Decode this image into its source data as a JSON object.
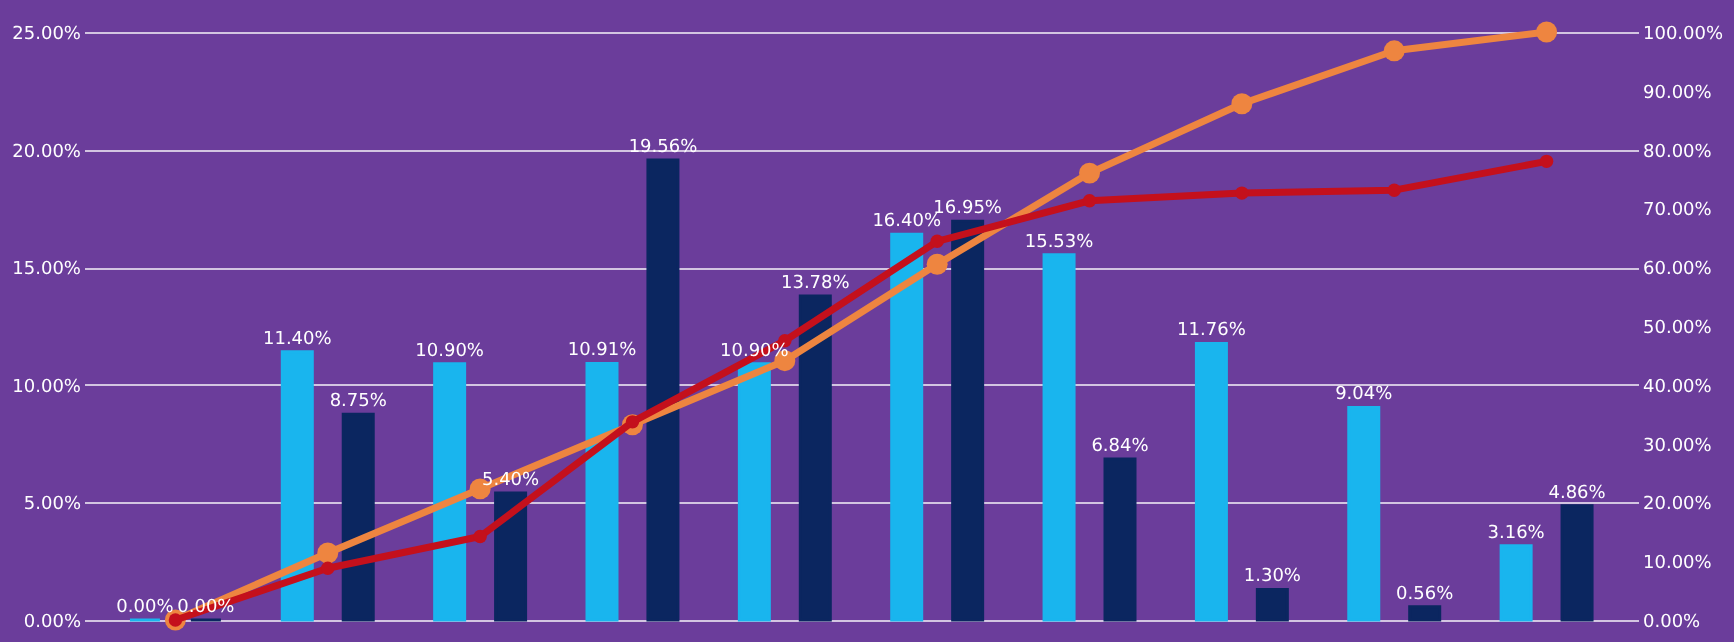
{
  "chart_data": {
    "type": "bar",
    "categories": [
      null,
      null,
      null,
      null,
      null,
      null,
      null,
      null,
      null,
      null
    ],
    "series": [
      {
        "color": "#19b5ee",
        "values": [
          0,
          11.4,
          10.9,
          10.91,
          10.9,
          16.4,
          15.53,
          11.76,
          9.04,
          3.16
        ],
        "value_labels": [
          "0.00%",
          "11.40%",
          "10.90%",
          "10.91%",
          "10.90%",
          "16.40%",
          "15.53%",
          "11.76%",
          "9.04%",
          "3.16%"
        ]
      },
      {
        "color": "#0b2660",
        "values": [
          0,
          8.75,
          5.4,
          19.56,
          13.78,
          16.95,
          6.84,
          1.3,
          0.56,
          4.86
        ],
        "value_labels": [
          "0.00%",
          "8.75%",
          "5.40%",
          "19.56%",
          "13.78%",
          "16.95%",
          "6.84%",
          "1.30%",
          "0.56%",
          "4.86%"
        ]
      },
      {
        "type": "line",
        "axis": "y2",
        "color": "#ee8540",
        "values": [
          0,
          11.4,
          22.3,
          33.2,
          44.1,
          60.5,
          76.0,
          87.8,
          96.8,
          100
        ]
      },
      {
        "type": "line",
        "axis": "y2",
        "color": "#c4101c",
        "values": [
          0,
          8.8,
          14.2,
          33.7,
          47.5,
          64.4,
          71.3,
          72.6,
          73.1,
          78.0
        ]
      }
    ],
    "ylim": [
      0,
      25
    ],
    "yticks": [
      {
        "value": 0,
        "label": "0.00%"
      },
      {
        "value": 5,
        "label": "5.00%"
      },
      {
        "value": 10,
        "label": "10.00%"
      },
      {
        "value": 15,
        "label": "15.00%"
      },
      {
        "value": 20,
        "label": "20.00%"
      },
      {
        "value": 25,
        "label": "25.00%"
      }
    ],
    "y2lim": [
      0,
      100
    ],
    "y2ticks": [
      {
        "value": 0,
        "label": "0.00%"
      },
      {
        "value": 10,
        "label": "10.00%"
      },
      {
        "value": 20,
        "label": "20.00%"
      },
      {
        "value": 30,
        "label": "30.00%"
      },
      {
        "value": 40,
        "label": "40.00%"
      },
      {
        "value": 50,
        "label": "50.00%"
      },
      {
        "value": 60,
        "label": "60.00%"
      },
      {
        "value": 70,
        "label": "70.00%"
      },
      {
        "value": 80,
        "label": "80.00%"
      },
      {
        "value": 90,
        "label": "90.00%"
      },
      {
        "value": 100,
        "label": "100.00%"
      }
    ],
    "grid": "y",
    "marker": "circle",
    "line_style": "solid"
  }
}
